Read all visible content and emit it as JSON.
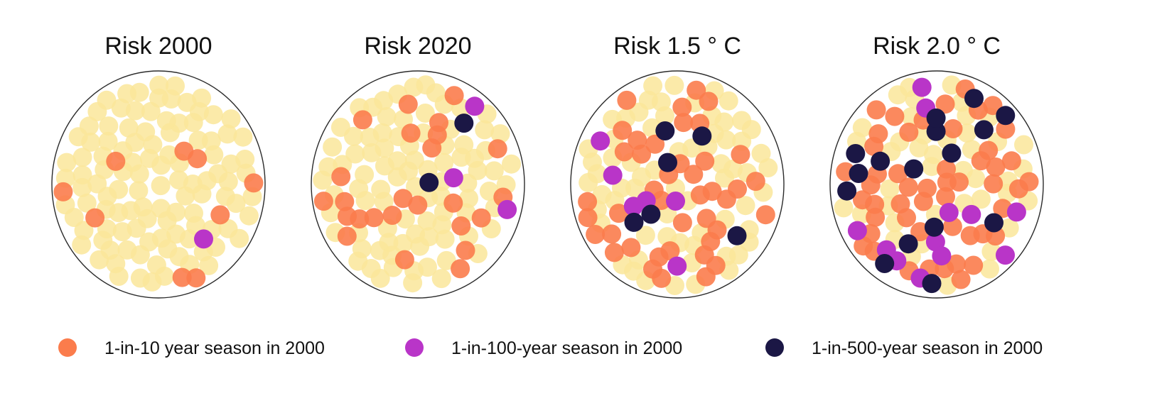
{
  "chart_data": {
    "type": "scatter",
    "colors": {
      "base": "#fae69a",
      "one_in_10": "#fb7c4c",
      "one_in_100": "#b935c8",
      "one_in_500": "#1b1745",
      "outline": "#2b2b2b"
    },
    "legend": {
      "placement": "bottom",
      "entries": [
        {
          "key": "one_in_10",
          "label": "1-in-10 year season in 2000"
        },
        {
          "key": "one_in_100",
          "label": "1-in-100-year season in 2000"
        },
        {
          "key": "one_in_500",
          "label": "1-in-500-year season in 2000"
        }
      ]
    },
    "panels": [
      {
        "title": "Risk 2000",
        "one_in_10": 9,
        "one_in_100": 1,
        "one_in_500": 0,
        "seed": 11
      },
      {
        "title": "Risk 2020",
        "one_in_10": 25,
        "one_in_100": 3,
        "one_in_500": 2,
        "seed": 23
      },
      {
        "title": "Risk 1.5 ° C",
        "one_in_10": 42,
        "one_in_100": 6,
        "one_in_500": 6,
        "seed": 37
      },
      {
        "title": "Risk 2.0 ° C",
        "one_in_10": 50,
        "one_in_100": 12,
        "one_in_500": 16,
        "seed": 53
      }
    ]
  }
}
